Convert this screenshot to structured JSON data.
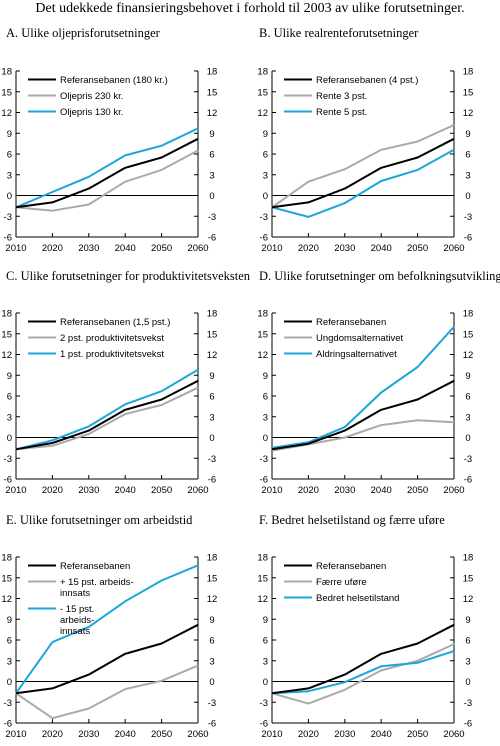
{
  "title": "Det udekkede finansieringsbehovet i forhold til 2003 av ulike forutsetninger.",
  "colors": {
    "reference": "#000000",
    "gray": "#aaaaaa",
    "blue": "#1aa6d9"
  },
  "chart_data": [
    {
      "type": "line",
      "title": "A. Ulike oljeprisforutsetninger",
      "x": [
        2010,
        2020,
        2030,
        2040,
        2050,
        2060
      ],
      "xlim": [
        2010,
        2060
      ],
      "ylim": [
        -6,
        18
      ],
      "yticks": [
        -6,
        -3,
        0,
        3,
        6,
        9,
        12,
        15,
        18
      ],
      "legend_position": "top-left",
      "series": [
        {
          "name": "Referansebanen (180 kr.)",
          "color": "reference",
          "values": [
            -1.7,
            -1.0,
            1.0,
            4.0,
            5.5,
            8.2
          ]
        },
        {
          "name": "Oljepris 230 kr.",
          "color": "gray",
          "values": [
            -1.7,
            -2.2,
            -1.3,
            2.0,
            3.7,
            6.5
          ]
        },
        {
          "name": "Oljepris 130 kr.",
          "color": "blue",
          "values": [
            -1.7,
            0.5,
            2.7,
            5.8,
            7.2,
            9.7
          ]
        }
      ]
    },
    {
      "type": "line",
      "title": "B. Ulike realrenteforutsetninger",
      "x": [
        2010,
        2020,
        2030,
        2040,
        2050,
        2060
      ],
      "xlim": [
        2010,
        2060
      ],
      "ylim": [
        -6,
        18
      ],
      "yticks": [
        -6,
        -3,
        0,
        3,
        6,
        9,
        12,
        15,
        18
      ],
      "legend_position": "top-left",
      "series": [
        {
          "name": "Referansebanen (4 pst.)",
          "color": "reference",
          "values": [
            -1.7,
            -1.0,
            1.0,
            4.0,
            5.5,
            8.2
          ]
        },
        {
          "name": "Rente 3 pst.",
          "color": "gray",
          "values": [
            -1.7,
            2.0,
            3.8,
            6.6,
            7.8,
            10.2
          ]
        },
        {
          "name": "Rente 5 pst.",
          "color": "blue",
          "values": [
            -1.7,
            -3.1,
            -1.1,
            2.1,
            3.7,
            6.6
          ]
        }
      ]
    },
    {
      "type": "line",
      "title": "C. Ulike forutsetninger for produktivitetsveksten",
      "x": [
        2010,
        2020,
        2030,
        2040,
        2050,
        2060
      ],
      "xlim": [
        2010,
        2060
      ],
      "ylim": [
        -6,
        18
      ],
      "yticks": [
        -6,
        -3,
        0,
        3,
        6,
        9,
        12,
        15,
        18
      ],
      "legend_position": "top-left",
      "series": [
        {
          "name": "Referansebanen (1,5 pst.)",
          "color": "reference",
          "values": [
            -1.7,
            -0.8,
            1.0,
            4.0,
            5.5,
            8.2
          ]
        },
        {
          "name": "2 pst. produktivitetsvekst",
          "color": "gray",
          "values": [
            -1.7,
            -1.2,
            0.5,
            3.4,
            4.7,
            7.2
          ]
        },
        {
          "name": "1 pst. produktivitetsvekst",
          "color": "blue",
          "values": [
            -1.7,
            -0.4,
            1.6,
            4.8,
            6.7,
            9.8
          ]
        }
      ]
    },
    {
      "type": "line",
      "title": "D. Ulike forutsetninger om befolkningsutviklingen",
      "x": [
        2010,
        2020,
        2030,
        2040,
        2050,
        2060
      ],
      "xlim": [
        2010,
        2060
      ],
      "ylim": [
        -6,
        18
      ],
      "yticks": [
        -6,
        -3,
        0,
        3,
        6,
        9,
        12,
        15,
        18
      ],
      "legend_position": "top-left",
      "series": [
        {
          "name": "Referansebanen",
          "color": "reference",
          "values": [
            -1.7,
            -0.9,
            1.0,
            4.0,
            5.5,
            8.2
          ]
        },
        {
          "name": "Ungdomsalternativet",
          "color": "gray",
          "values": [
            -1.9,
            -1.0,
            0.0,
            1.8,
            2.5,
            2.2
          ]
        },
        {
          "name": "Aldringsalternativet",
          "color": "blue",
          "values": [
            -1.5,
            -0.7,
            1.5,
            6.5,
            10.2,
            16.0
          ]
        }
      ]
    },
    {
      "type": "line",
      "title": "E. Ulike forutsetninger om arbeidstid",
      "x": [
        2010,
        2020,
        2030,
        2040,
        2050,
        2060
      ],
      "xlim": [
        2010,
        2060
      ],
      "ylim": [
        -6,
        18
      ],
      "yticks": [
        -6,
        -3,
        0,
        3,
        6,
        9,
        12,
        15,
        18
      ],
      "legend_position": "top-left",
      "series": [
        {
          "name": "Referansebanen",
          "color": "reference",
          "values": [
            -1.7,
            -1.0,
            1.0,
            4.0,
            5.5,
            8.2
          ]
        },
        {
          "name": "+ 15 pst. arbeids-|innsats",
          "color": "gray",
          "values": [
            -1.7,
            -5.3,
            -3.9,
            -1.1,
            0.1,
            2.3
          ]
        },
        {
          "name": "- 15 pst.|arbeids-|innsats",
          "color": "blue",
          "values": [
            -1.7,
            5.7,
            7.9,
            11.6,
            14.6,
            16.8
          ]
        }
      ]
    },
    {
      "type": "line",
      "title": "F. Bedret helsetilstand og færre uføre",
      "x": [
        2010,
        2020,
        2030,
        2040,
        2050,
        2060
      ],
      "xlim": [
        2010,
        2060
      ],
      "ylim": [
        -6,
        18
      ],
      "yticks": [
        -6,
        -3,
        0,
        3,
        6,
        9,
        12,
        15,
        18
      ],
      "legend_position": "top-left",
      "series": [
        {
          "name": "Referansebanen",
          "color": "reference",
          "values": [
            -1.7,
            -1.0,
            1.0,
            4.0,
            5.5,
            8.2
          ]
        },
        {
          "name": "Færre uføre",
          "color": "gray",
          "values": [
            -1.7,
            -3.2,
            -1.2,
            1.6,
            3.0,
            5.4
          ]
        },
        {
          "name": "Bedret helsetilstand",
          "color": "blue",
          "values": [
            -1.7,
            -1.4,
            -0.1,
            2.2,
            2.7,
            4.4
          ]
        }
      ]
    }
  ]
}
